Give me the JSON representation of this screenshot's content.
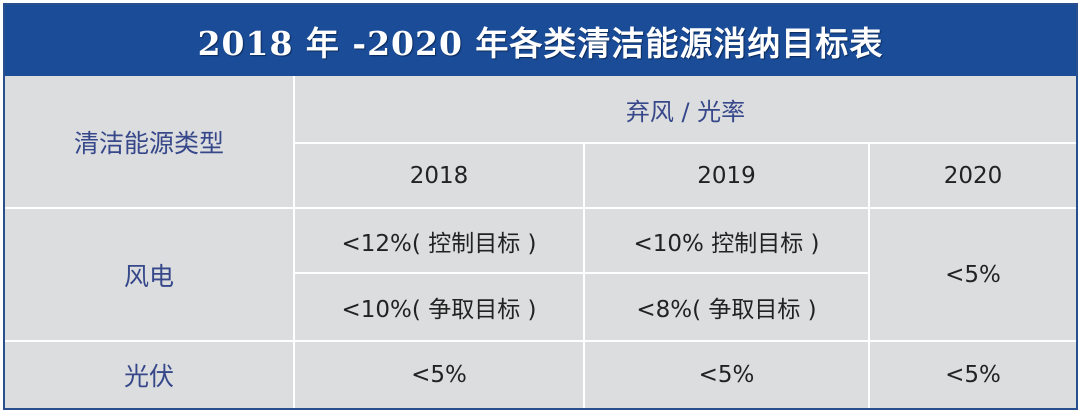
{
  "title": "2018 年 -2020 年各类清洁能源消纳目标表",
  "header": {
    "type_label": "清洁能源类型",
    "group_label": "弃风 / 光率",
    "years": [
      "2018",
      "2019",
      "2020"
    ]
  },
  "rows": {
    "wind": {
      "label": "风电",
      "y2018_control": "<12%( 控制目标 )",
      "y2018_strive": "<10%( 争取目标 )",
      "y2019_control": "<10% 控制目标 )",
      "y2019_strive": "<8%( 争取目标 )",
      "y2020": "<5%"
    },
    "solar": {
      "label": "光伏",
      "y2018": "<5%",
      "y2019": "<5%",
      "y2020": "<5%"
    }
  },
  "colors": {
    "header_bg": "#1b4c98",
    "cell_bg": "#dcdddf",
    "type_text": "#36488a"
  }
}
